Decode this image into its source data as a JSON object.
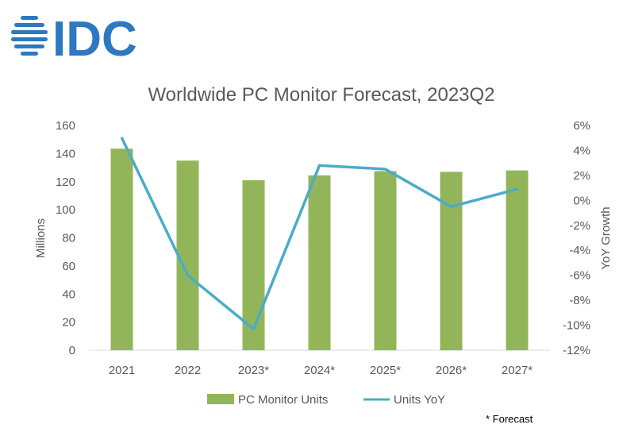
{
  "logo": {
    "text": "IDC",
    "color": "#2E78C2"
  },
  "footnote": "* Forecast",
  "chart_data": {
    "type": "bar",
    "title": "Worldwide PC Monitor Forecast, 2023Q2",
    "categories": [
      "2021",
      "2022",
      "2023*",
      "2024*",
      "2025*",
      "2026*",
      "2027*"
    ],
    "ylabel": "Millions",
    "y2label": "YoY Growth",
    "ylim": [
      0,
      160
    ],
    "yticks": [
      0,
      20,
      40,
      60,
      80,
      100,
      120,
      140,
      160
    ],
    "y2lim": [
      -12,
      6
    ],
    "y2ticks": [
      -12,
      -10,
      -8,
      -6,
      -4,
      -2,
      0,
      2,
      4,
      6
    ],
    "y2tick_labels": [
      "-12%",
      "-10%",
      "-8%",
      "-6%",
      "-4%",
      "-2%",
      "0%",
      "2%",
      "4%",
      "6%"
    ],
    "grid": false,
    "legend_position": "bottom",
    "series": [
      {
        "name": "PC Monitor Units",
        "type": "bar",
        "axis": "left",
        "color": "#93B55A",
        "values": [
          143.5,
          135,
          121,
          124.5,
          127.5,
          127,
          128
        ]
      },
      {
        "name": "Units YoY",
        "type": "line",
        "axis": "right",
        "color": "#4BACC6",
        "values": [
          5.0,
          -6.0,
          -10.3,
          2.8,
          2.5,
          -0.5,
          0.9
        ]
      }
    ]
  }
}
